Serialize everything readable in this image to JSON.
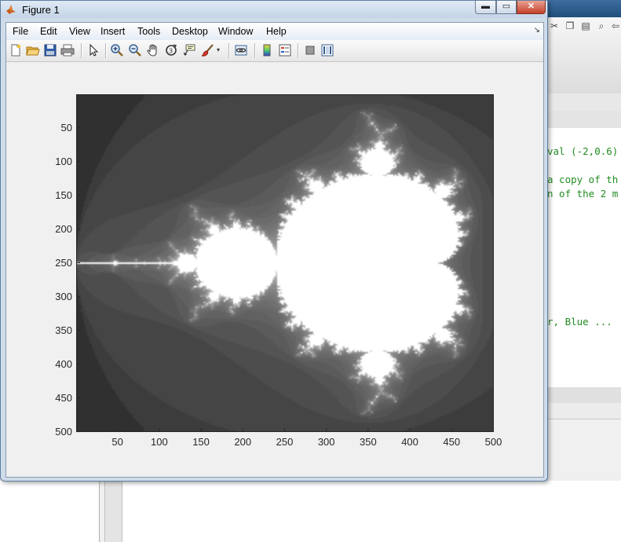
{
  "window": {
    "title": "Figure 1",
    "minimize_glyph": "▬",
    "maximize_glyph": "▭",
    "close_glyph": "✕"
  },
  "menu": {
    "items": [
      "File",
      "Edit",
      "View",
      "Insert",
      "Tools",
      "Desktop",
      "Window",
      "Help"
    ],
    "dock_glyph": "↘"
  },
  "toolbar": {
    "icons": [
      "new-figure-icon",
      "open-file-icon",
      "save-figure-icon",
      "print-figure-icon",
      "edit-plot-arrow-icon",
      "zoom-in-icon",
      "zoom-out-icon",
      "pan-hand-icon",
      "rotate-3d-icon",
      "data-cursor-icon",
      "brush-icon",
      "brush-dropdown-icon",
      "link-plot-icon",
      "insert-colorbar-icon",
      "insert-legend-icon",
      "hide-plot-tools-icon",
      "show-plot-tools-icon"
    ]
  },
  "axes": {
    "x_ticks": [
      "50",
      "100",
      "150",
      "200",
      "250",
      "300",
      "350",
      "400",
      "450",
      "500"
    ],
    "y_ticks": [
      "50",
      "100",
      "150",
      "200",
      "250",
      "300",
      "350",
      "400",
      "450",
      "500"
    ]
  },
  "image_data": {
    "type": "image",
    "colormap": "gray",
    "x_range": [
      1,
      500
    ],
    "y_range": [
      1,
      500
    ],
    "x_ticks": [
      50,
      100,
      150,
      200,
      250,
      300,
      350,
      400,
      450,
      500
    ],
    "y_ticks": [
      50,
      100,
      150,
      200,
      250,
      300,
      350,
      400,
      450,
      500
    ],
    "y_direction": "reverse"
  },
  "background_editor": {
    "code_lines": [
      "val (-2,0.6)",
      "",
      "a copy of th",
      "n of the 2 m",
      "",
      "",
      "",
      "",
      "",
      "",
      "",
      "r, Blue ..."
    ]
  }
}
